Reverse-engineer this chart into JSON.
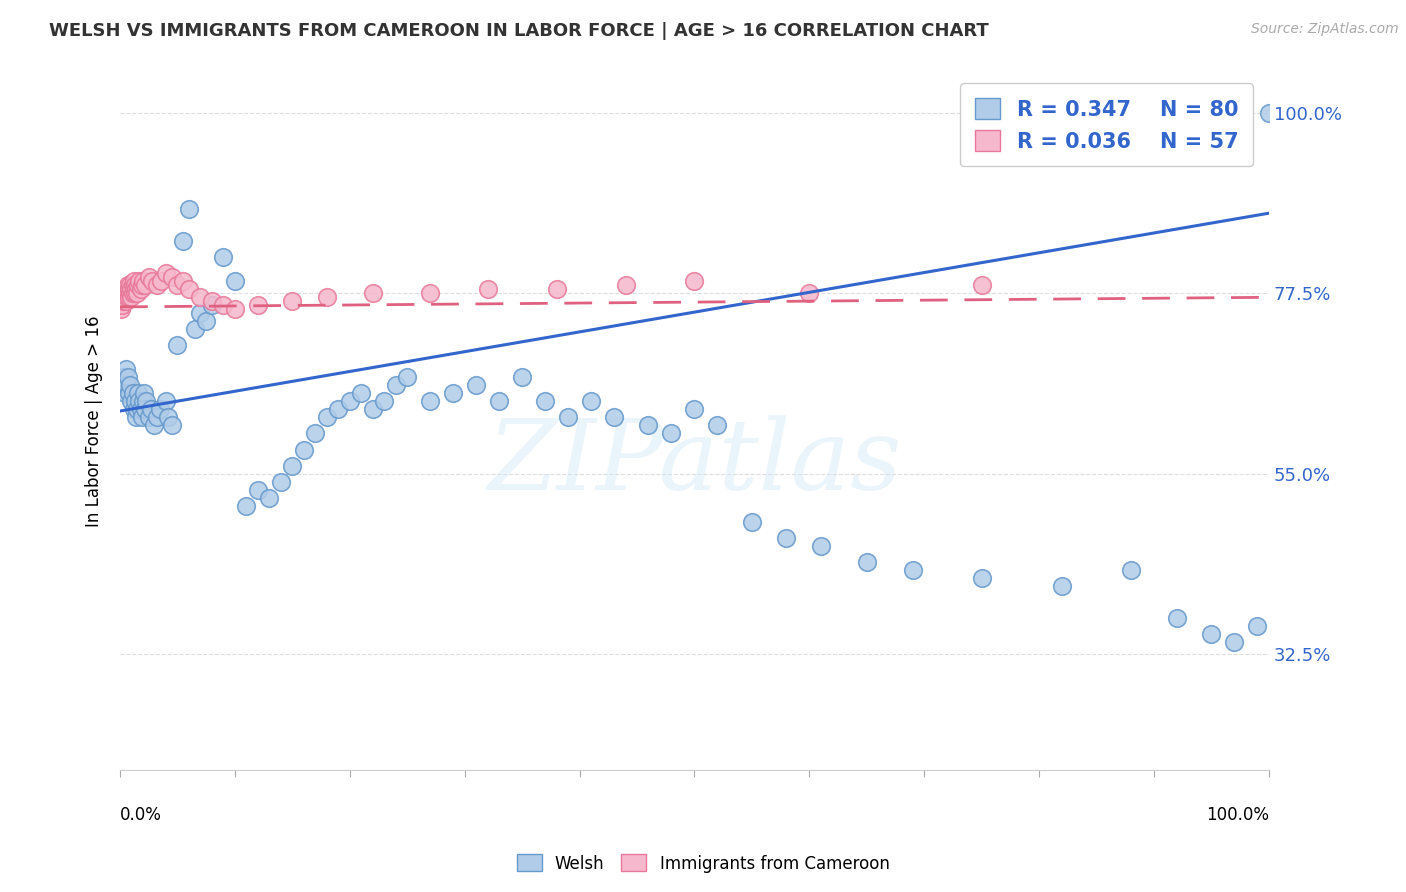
{
  "title": "WELSH VS IMMIGRANTS FROM CAMEROON IN LABOR FORCE | AGE > 16 CORRELATION CHART",
  "source": "Source: ZipAtlas.com",
  "ylabel": "In Labor Force | Age > 16",
  "ytick_labels": [
    "100.0%",
    "77.5%",
    "55.0%",
    "32.5%"
  ],
  "ytick_values": [
    1.0,
    0.775,
    0.55,
    0.325
  ],
  "xlim": [
    0.0,
    1.0
  ],
  "ylim": [
    0.18,
    1.05
  ],
  "welsh_color": "#b0cce8",
  "welsh_edge_color": "#6699cc",
  "cameroon_color": "#f5b8cc",
  "cameroon_edge_color": "#e87799",
  "welsh_line_color": "#3366cc",
  "cameroon_line_color": "#e06080",
  "R_welsh": "0.347",
  "N_welsh": "80",
  "R_cameroon": "0.036",
  "N_cameroon": "57",
  "watermark": "ZIPatlas",
  "background_color": "#ffffff",
  "grid_color": "#dddddd",
  "axis_label_color": "#3366cc",
  "title_color": "#333333",
  "welsh_x": [
    0.002,
    0.003,
    0.004,
    0.005,
    0.006,
    0.007,
    0.008,
    0.009,
    0.01,
    0.011,
    0.012,
    0.013,
    0.014,
    0.015,
    0.016,
    0.017,
    0.018,
    0.019,
    0.02,
    0.021,
    0.022,
    0.023,
    0.025,
    0.027,
    0.03,
    0.032,
    0.035,
    0.04,
    0.042,
    0.045,
    0.05,
    0.055,
    0.06,
    0.065,
    0.07,
    0.075,
    0.08,
    0.09,
    0.1,
    0.11,
    0.12,
    0.13,
    0.14,
    0.15,
    0.16,
    0.17,
    0.18,
    0.19,
    0.2,
    0.21,
    0.22,
    0.23,
    0.24,
    0.25,
    0.27,
    0.29,
    0.31,
    0.33,
    0.35,
    0.37,
    0.39,
    0.41,
    0.43,
    0.46,
    0.48,
    0.5,
    0.52,
    0.55,
    0.58,
    0.61,
    0.65,
    0.69,
    0.75,
    0.82,
    0.88,
    0.92,
    0.95,
    0.97,
    0.99,
    1.0
  ],
  "welsh_y": [
    0.66,
    0.67,
    0.65,
    0.68,
    0.66,
    0.67,
    0.65,
    0.66,
    0.64,
    0.65,
    0.63,
    0.64,
    0.62,
    0.63,
    0.65,
    0.64,
    0.63,
    0.62,
    0.64,
    0.65,
    0.63,
    0.64,
    0.62,
    0.63,
    0.61,
    0.62,
    0.63,
    0.64,
    0.62,
    0.61,
    0.71,
    0.84,
    0.88,
    0.73,
    0.75,
    0.74,
    0.76,
    0.82,
    0.79,
    0.51,
    0.53,
    0.52,
    0.54,
    0.56,
    0.58,
    0.6,
    0.62,
    0.63,
    0.64,
    0.65,
    0.63,
    0.64,
    0.66,
    0.67,
    0.64,
    0.65,
    0.66,
    0.64,
    0.67,
    0.64,
    0.62,
    0.64,
    0.62,
    0.61,
    0.6,
    0.63,
    0.61,
    0.49,
    0.47,
    0.46,
    0.44,
    0.43,
    0.42,
    0.41,
    0.43,
    0.37,
    0.35,
    0.34,
    0.36,
    1.0
  ],
  "cameroon_x": [
    0.001,
    0.002,
    0.002,
    0.003,
    0.003,
    0.004,
    0.004,
    0.005,
    0.005,
    0.006,
    0.006,
    0.007,
    0.007,
    0.008,
    0.008,
    0.009,
    0.009,
    0.01,
    0.01,
    0.011,
    0.011,
    0.012,
    0.012,
    0.013,
    0.013,
    0.014,
    0.015,
    0.016,
    0.017,
    0.018,
    0.019,
    0.02,
    0.022,
    0.025,
    0.028,
    0.032,
    0.036,
    0.04,
    0.045,
    0.05,
    0.055,
    0.06,
    0.07,
    0.08,
    0.09,
    0.1,
    0.12,
    0.15,
    0.18,
    0.22,
    0.27,
    0.32,
    0.38,
    0.44,
    0.5,
    0.6,
    0.75
  ],
  "cameroon_y": [
    0.755,
    0.76,
    0.77,
    0.765,
    0.775,
    0.77,
    0.78,
    0.765,
    0.775,
    0.77,
    0.78,
    0.775,
    0.785,
    0.77,
    0.78,
    0.775,
    0.785,
    0.77,
    0.78,
    0.775,
    0.785,
    0.78,
    0.79,
    0.775,
    0.785,
    0.78,
    0.775,
    0.785,
    0.79,
    0.78,
    0.785,
    0.79,
    0.785,
    0.795,
    0.79,
    0.785,
    0.79,
    0.8,
    0.795,
    0.785,
    0.79,
    0.78,
    0.77,
    0.765,
    0.76,
    0.755,
    0.76,
    0.765,
    0.77,
    0.775,
    0.775,
    0.78,
    0.78,
    0.785,
    0.79,
    0.775,
    0.785
  ],
  "welsh_trend_x": [
    0.0,
    1.0
  ],
  "welsh_trend_y": [
    0.628,
    0.875
  ],
  "cameroon_trend_x": [
    0.0,
    1.0
  ],
  "cameroon_trend_y": [
    0.758,
    0.77
  ]
}
